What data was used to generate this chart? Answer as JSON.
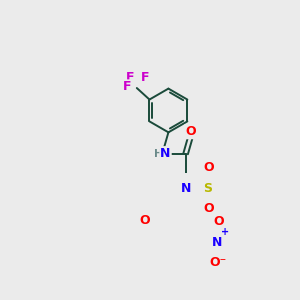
{
  "bg_color": "#ebebeb",
  "bond_color": "#1a4a3a",
  "bond_width": 1.4,
  "atom_colors": {
    "N": "#1a00ff",
    "O": "#ff0000",
    "F": "#cc00cc",
    "S": "#b8b800",
    "H": "#6a8a8a",
    "C": "#1a4a3a"
  },
  "font_size": 8.5,
  "figsize": [
    3.0,
    3.0
  ],
  "dpi": 100
}
